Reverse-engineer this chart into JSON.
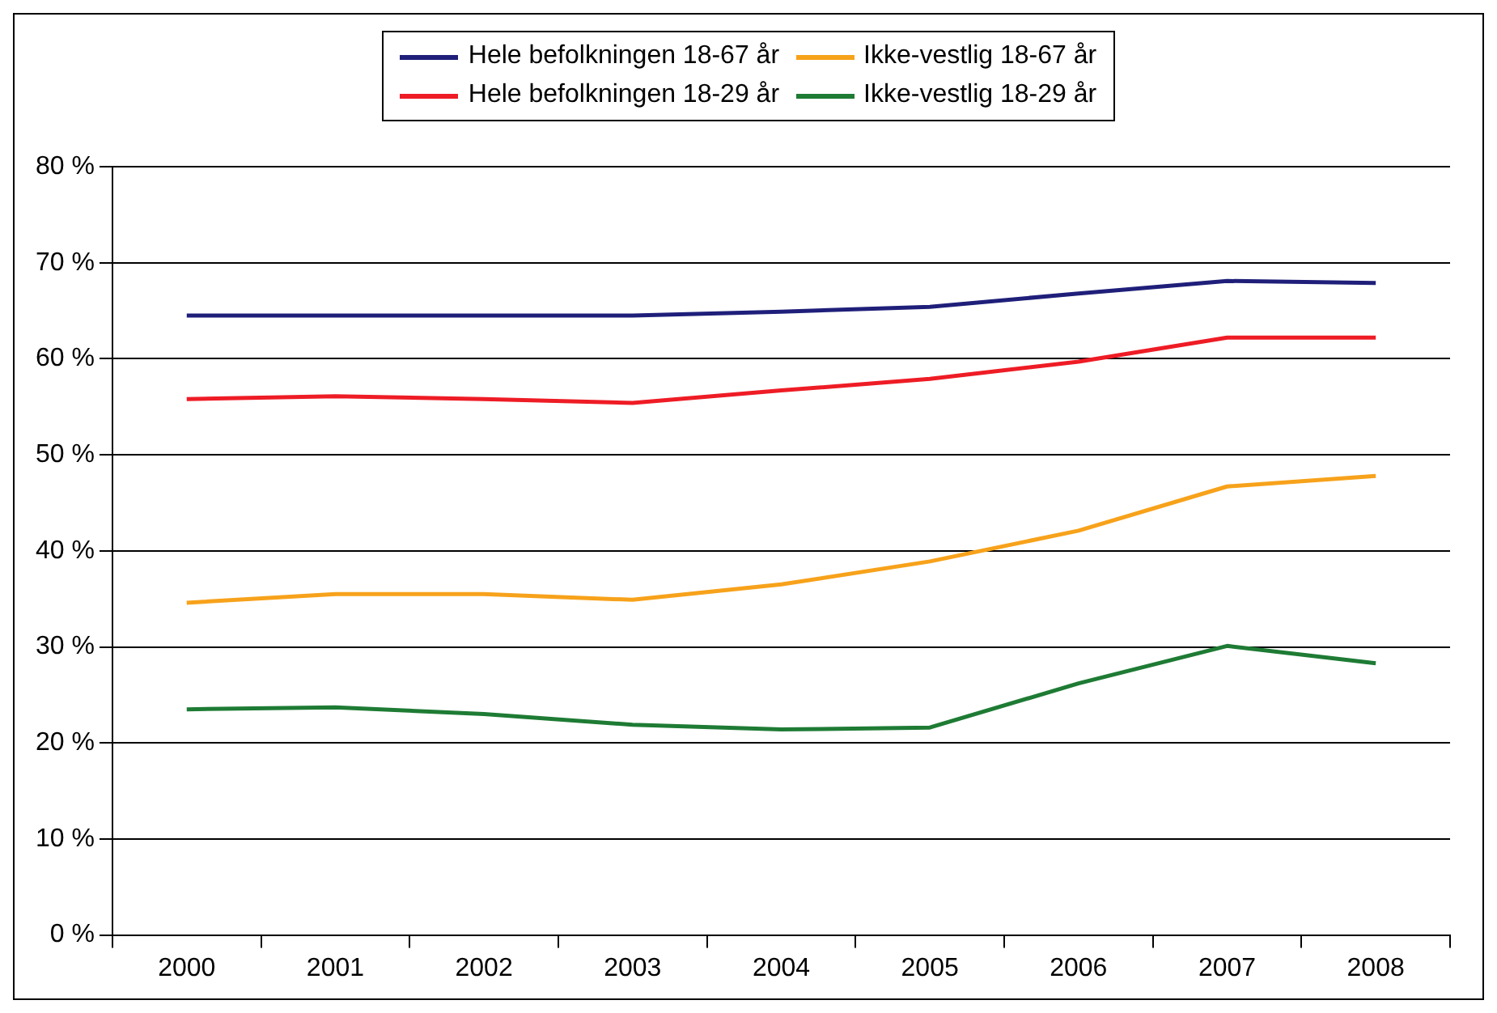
{
  "chart_data": {
    "type": "line",
    "categories": [
      "2000",
      "2001",
      "2002",
      "2003",
      "2004",
      "2005",
      "2006",
      "2007",
      "2008"
    ],
    "series": [
      {
        "name": "Hele befolkningen 18-67 år",
        "color": "#1f1f7a",
        "values": [
          64.5,
          64.5,
          64.5,
          64.5,
          64.9,
          65.4,
          66.8,
          68.1,
          67.9
        ]
      },
      {
        "name": "Ikke-vestlig 18-67 år",
        "color": "#f7a21b",
        "values": [
          34.6,
          35.5,
          35.5,
          34.9,
          36.5,
          38.9,
          42.1,
          46.7,
          47.8
        ]
      },
      {
        "name": "Hele befolkningen 18-29 år",
        "color": "#ee1c25",
        "values": [
          55.8,
          56.1,
          55.8,
          55.4,
          56.7,
          57.9,
          59.7,
          62.2,
          62.2
        ]
      },
      {
        "name": "Ikke-vestlig 18-29 år",
        "color": "#1e7b34",
        "values": [
          23.5,
          23.7,
          23.0,
          21.9,
          21.4,
          21.6,
          26.2,
          30.1,
          28.3
        ]
      }
    ],
    "ylim": [
      0,
      80
    ],
    "yticks": [
      {
        "value": 0,
        "label": "0 %"
      },
      {
        "value": 10,
        "label": "10 %"
      },
      {
        "value": 20,
        "label": "20 %"
      },
      {
        "value": 30,
        "label": "30 %"
      },
      {
        "value": 40,
        "label": "40 %"
      },
      {
        "value": 50,
        "label": "50 %"
      },
      {
        "value": 60,
        "label": "60 %"
      },
      {
        "value": 70,
        "label": "70 %"
      },
      {
        "value": 80,
        "label": "80 %"
      }
    ],
    "grid": "y",
    "legend": "top",
    "marker": "none",
    "line_style": "solid"
  }
}
